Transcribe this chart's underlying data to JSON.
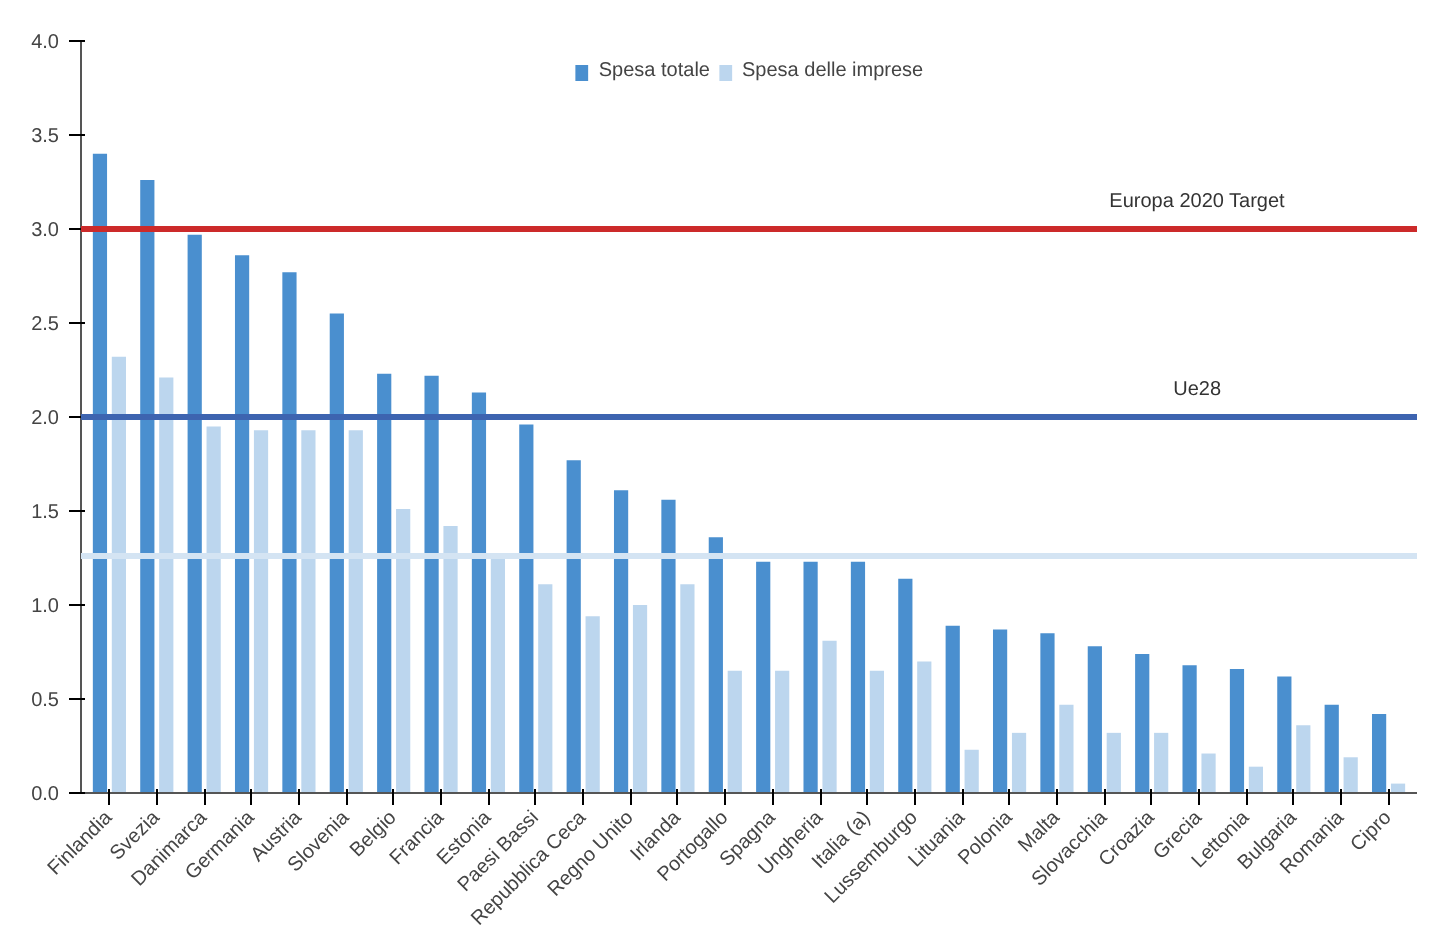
{
  "chart_data": {
    "type": "bar",
    "categories": [
      "Finlandia",
      "Svezia",
      "Danimarca",
      "Germania",
      "Austria",
      "Slovenia",
      "Belgio",
      "Francia",
      "Estonia",
      "Paesi Bassi",
      "Repubblica Ceca",
      "Regno Unito",
      "Irlanda",
      "Portogallo",
      "Spagna",
      "Ungheria",
      "Italia (a)",
      "Lussemburgo",
      "Lituania",
      "Polonia",
      "Malta",
      "Slovacchia",
      "Croazia",
      "Grecia",
      "Lettonia",
      "Bulgaria",
      "Romania",
      "Cipro"
    ],
    "series": [
      {
        "name": "Spesa totale",
        "color": "#4a8fcf",
        "values": [
          3.4,
          3.26,
          2.97,
          2.86,
          2.77,
          2.55,
          2.23,
          2.22,
          2.13,
          1.96,
          1.77,
          1.61,
          1.56,
          1.36,
          1.23,
          1.23,
          1.23,
          1.14,
          0.89,
          0.87,
          0.85,
          0.78,
          0.74,
          0.68,
          0.66,
          0.62,
          0.47,
          0.42
        ]
      },
      {
        "name": "Spesa delle imprese",
        "color": "#bcd6ee",
        "values": [
          2.32,
          2.21,
          1.95,
          1.93,
          1.93,
          1.93,
          1.51,
          1.42,
          1.25,
          1.11,
          0.94,
          1.0,
          1.11,
          0.65,
          0.65,
          0.81,
          0.65,
          0.7,
          0.23,
          0.32,
          0.47,
          0.32,
          0.32,
          0.21,
          0.14,
          0.36,
          0.19,
          0.05
        ]
      }
    ],
    "ylim": [
      0,
      4
    ],
    "yticks": [
      {
        "value": 0,
        "label": "0.0"
      },
      {
        "value": 0.5,
        "label": "0.5"
      },
      {
        "value": 1,
        "label": "1.0"
      },
      {
        "value": 1.5,
        "label": "1.5"
      },
      {
        "value": 2,
        "label": "2.0"
      },
      {
        "value": 2.5,
        "label": "2.5"
      },
      {
        "value": 3,
        "label": "3.0"
      },
      {
        "value": 3.5,
        "label": "3.5"
      },
      {
        "value": 4,
        "label": "4.0"
      }
    ],
    "ref_lines": [
      {
        "axis": "y",
        "value": 3,
        "label": "Europa 2020 Target",
        "color": "#cc2a2a"
      },
      {
        "axis": "y",
        "value": 2,
        "label": "Ue28",
        "color": "#3d64b0"
      },
      {
        "axis": "y",
        "value": 1.26,
        "color": "#d4e4f3"
      }
    ],
    "legend": "top",
    "grid": false
  }
}
